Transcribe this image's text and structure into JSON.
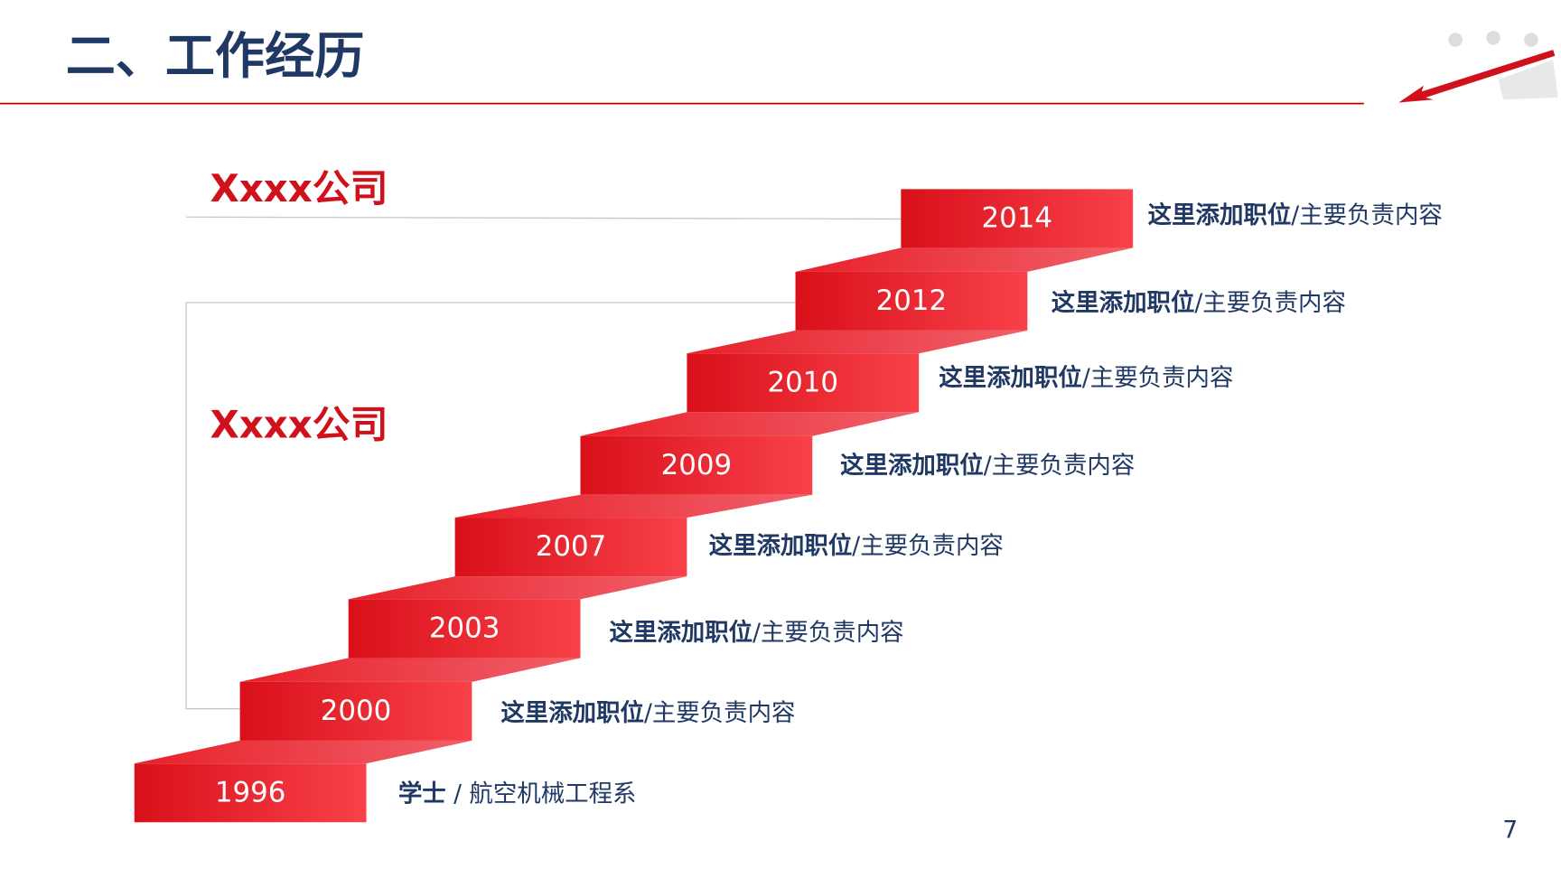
{
  "header": {
    "title": "二、工作经历"
  },
  "companies": [
    "Xxxx公司",
    "Xxxx公司"
  ],
  "steps": [
    {
      "year": "1996",
      "role": "学士",
      "detail": " / 航空机械工程系"
    },
    {
      "year": "2000",
      "role": "这里添加职位",
      "detail": "/主要负责内容"
    },
    {
      "year": "2003",
      "role": "这里添加职位",
      "detail": "/主要负责内容"
    },
    {
      "year": "2007",
      "role": "这里添加职位",
      "detail": "/主要负责内容"
    },
    {
      "year": "2009",
      "role": "这里添加职位",
      "detail": "/主要负责内容"
    },
    {
      "year": "2010",
      "role": "这里添加职位",
      "detail": "/主要负责内容"
    },
    {
      "year": "2012",
      "role": "这里添加职位",
      "detail": "/主要负责内容"
    },
    {
      "year": "2014",
      "role": "这里添加职位",
      "detail": "/主要负责内容"
    }
  ],
  "page_number": "7"
}
